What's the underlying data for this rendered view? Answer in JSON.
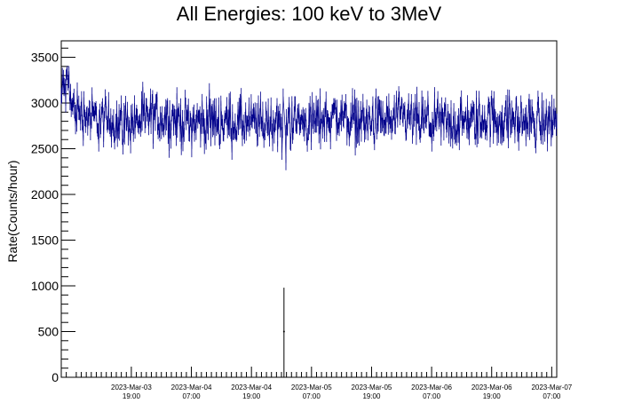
{
  "chart_data": {
    "type": "line",
    "title": "All Energies:  100 keV to 3MeV",
    "ylabel": "Rate(Counts/hour)",
    "xlabel": "",
    "ylim": [
      0,
      3680
    ],
    "xlim": [
      "2023-03-03 05:00",
      "2023-03-07 08:00"
    ],
    "yticks": [
      0,
      500,
      1000,
      1500,
      2000,
      2500,
      3000,
      3500
    ],
    "xticks": [
      {
        "date": "2023-Mar-03",
        "time": "19:00",
        "at": "2023-03-03 19:00"
      },
      {
        "date": "2023-Mar-04",
        "time": "07:00",
        "at": "2023-03-04 07:00"
      },
      {
        "date": "2023-Mar-04",
        "time": "19:00",
        "at": "2023-03-04 19:00"
      },
      {
        "date": "2023-Mar-05",
        "time": "07:00",
        "at": "2023-03-05 07:00"
      },
      {
        "date": "2023-Mar-05",
        "time": "19:00",
        "at": "2023-03-05 19:00"
      },
      {
        "date": "2023-Mar-06",
        "time": "07:00",
        "at": "2023-03-06 07:00"
      },
      {
        "date": "2023-Mar-06",
        "time": "19:00",
        "at": "2023-03-06 19:00"
      },
      {
        "date": "2023-Mar-07",
        "time": "07:00",
        "at": "2023-03-07 07:00"
      }
    ],
    "series": [
      {
        "color": "#00008b",
        "typical_range": [
          2500,
          3200
        ],
        "mean": 2800,
        "points": [
          {
            "x": "2023-03-03 05:00",
            "y": 3050
          },
          {
            "x": "2023-03-03 05:30",
            "y": 3200
          },
          {
            "x": "2023-03-03 06:00",
            "y": 3120
          },
          {
            "x": "2023-03-03 06:30",
            "y": 3300
          },
          {
            "x": "2023-03-03 07:00",
            "y": 2950
          },
          {
            "x": "2023-03-03 12:00",
            "y": 2820
          },
          {
            "x": "2023-03-03 18:00",
            "y": 2780
          },
          {
            "x": "2023-03-04 00:00",
            "y": 2850
          },
          {
            "x": "2023-03-04 06:00",
            "y": 2790
          },
          {
            "x": "2023-03-04 12:00",
            "y": 2810
          },
          {
            "x": "2023-03-04 18:00",
            "y": 2770
          },
          {
            "x": "2023-03-05 01:00",
            "y": 2800
          },
          {
            "x": "2023-03-05 01:30",
            "y": 500
          },
          {
            "x": "2023-03-05 02:00",
            "y": 2830
          },
          {
            "x": "2023-03-05 06:00",
            "y": 2780
          },
          {
            "x": "2023-03-05 12:00",
            "y": 2860
          },
          {
            "x": "2023-03-05 18:00",
            "y": 2790
          },
          {
            "x": "2023-03-06 00:00",
            "y": 2820
          },
          {
            "x": "2023-03-06 06:00",
            "y": 2800
          },
          {
            "x": "2023-03-06 12:00",
            "y": 2770
          },
          {
            "x": "2023-03-06 18:00",
            "y": 2830
          },
          {
            "x": "2023-03-07 00:00",
            "y": 2810
          },
          {
            "x": "2023-03-07 06:00",
            "y": 2790
          },
          {
            "x": "2023-03-07 08:00",
            "y": 2850
          }
        ],
        "dip_error": {
          "x": "2023-03-05 01:30",
          "low": 0,
          "high": 980
        }
      }
    ],
    "grid": false,
    "legend": "none"
  }
}
